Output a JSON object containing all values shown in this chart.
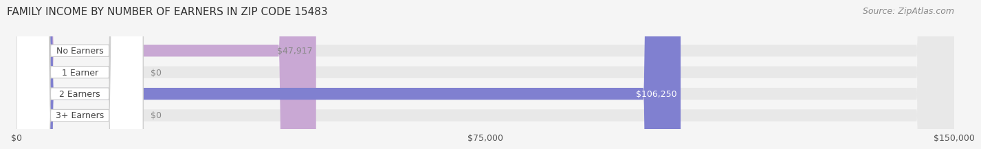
{
  "title": "FAMILY INCOME BY NUMBER OF EARNERS IN ZIP CODE 15483",
  "source": "Source: ZipAtlas.com",
  "categories": [
    "No Earners",
    "1 Earner",
    "2 Earners",
    "3+ Earners"
  ],
  "values": [
    47917,
    0,
    106250,
    0
  ],
  "xlim": [
    0,
    150000
  ],
  "xticks": [
    0,
    75000,
    150000
  ],
  "xtick_labels": [
    "$0",
    "$75,000",
    "$150,000"
  ],
  "bar_colors": [
    "#c9a8d4",
    "#7dcfcf",
    "#8080d0",
    "#f0a0b8"
  ],
  "label_colors": [
    "#888888",
    "#888888",
    "#ffffff",
    "#888888"
  ],
  "value_labels": [
    "$47,917",
    "$0",
    "$106,250",
    "$0"
  ],
  "bar_height": 0.55,
  "background_color": "#f5f5f5",
  "bar_bg_color": "#e8e8e8",
  "title_fontsize": 11,
  "source_fontsize": 9,
  "label_fontsize": 9,
  "value_fontsize": 9
}
